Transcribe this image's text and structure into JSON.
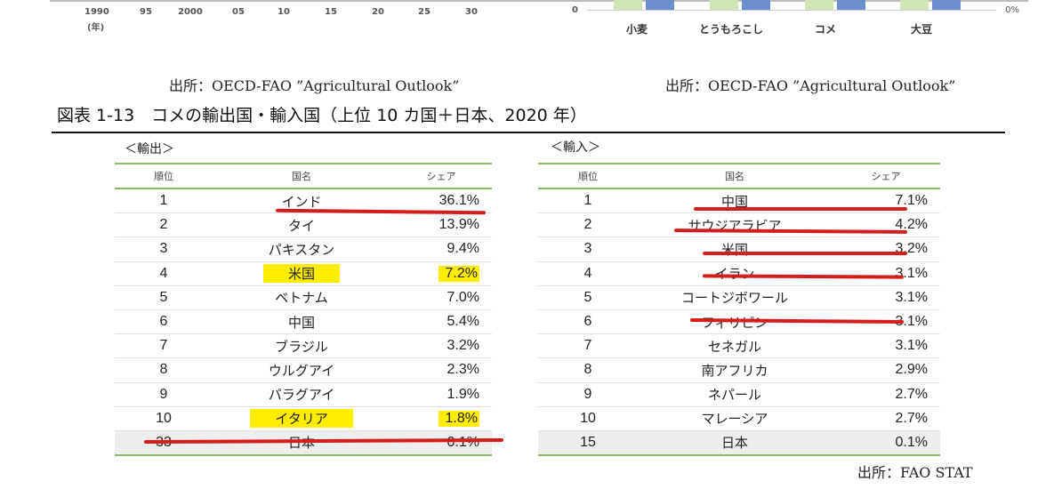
{
  "top_left_axis": {
    "years": [
      "1990",
      "95",
      "2000",
      "05",
      "10",
      "15",
      "20",
      "25",
      "30"
    ],
    "unit": "(年)"
  },
  "top_right_axis": {
    "zero": "0",
    "percent": "0%",
    "crops": [
      "小麦",
      "とうもろこし",
      "コメ",
      "大豆"
    ]
  },
  "sources": {
    "left": "出所：OECD-FAO ”Agricultural Outlook”",
    "right": "出所：OECD-FAO ”Agricultural Outlook”",
    "bottom": "出所：FAO STAT"
  },
  "figure_title": "図表 1-13　コメの輸出国・輸入国（上位 10 カ国＋日本、2020 年）",
  "export_table": {
    "label": "＜輸出＞",
    "headers": {
      "rank": "順位",
      "country": "国名",
      "share": "シェア"
    },
    "rows": [
      {
        "rank": "1",
        "country": "インド",
        "share": "36.1%"
      },
      {
        "rank": "2",
        "country": "タイ",
        "share": "13.9%"
      },
      {
        "rank": "3",
        "country": "パキスタン",
        "share": "9.4%"
      },
      {
        "rank": "4",
        "country": "米国",
        "share": "7.2%"
      },
      {
        "rank": "5",
        "country": "ベトナム",
        "share": "7.0%"
      },
      {
        "rank": "6",
        "country": "中国",
        "share": "5.4%"
      },
      {
        "rank": "7",
        "country": "ブラジル",
        "share": "3.2%"
      },
      {
        "rank": "8",
        "country": "ウルグアイ",
        "share": "2.3%"
      },
      {
        "rank": "9",
        "country": "パラグアイ",
        "share": "1.9%"
      },
      {
        "rank": "10",
        "country": "イタリア",
        "share": "1.8%"
      },
      {
        "rank": "33",
        "country": "日本",
        "share": "0.1%"
      }
    ]
  },
  "import_table": {
    "label": "＜輸入＞",
    "headers": {
      "rank": "順位",
      "country": "国名",
      "share": "シェア"
    },
    "rows": [
      {
        "rank": "1",
        "country": "中国",
        "share": "7.1%"
      },
      {
        "rank": "2",
        "country": "サウジアラビア",
        "share": "4.2%"
      },
      {
        "rank": "3",
        "country": "米国",
        "share": "3.2%"
      },
      {
        "rank": "4",
        "country": "イラン",
        "share": "3.1%"
      },
      {
        "rank": "5",
        "country": "コートジボワール",
        "share": "3.1%"
      },
      {
        "rank": "6",
        "country": "フィリピン",
        "share": "3.1%"
      },
      {
        "rank": "7",
        "country": "セネガル",
        "share": "3.1%"
      },
      {
        "rank": "8",
        "country": "南アフリカ",
        "share": "2.9%"
      },
      {
        "rank": "9",
        "country": "ネパール",
        "share": "2.7%"
      },
      {
        "rank": "10",
        "country": "マレーシア",
        "share": "2.7%"
      },
      {
        "rank": "15",
        "country": "日本",
        "share": "0.1%"
      }
    ]
  },
  "colors": {
    "highlight": "#ffed00",
    "annotation_red": "#d61d1d",
    "table_rule": "#8ab86a"
  }
}
